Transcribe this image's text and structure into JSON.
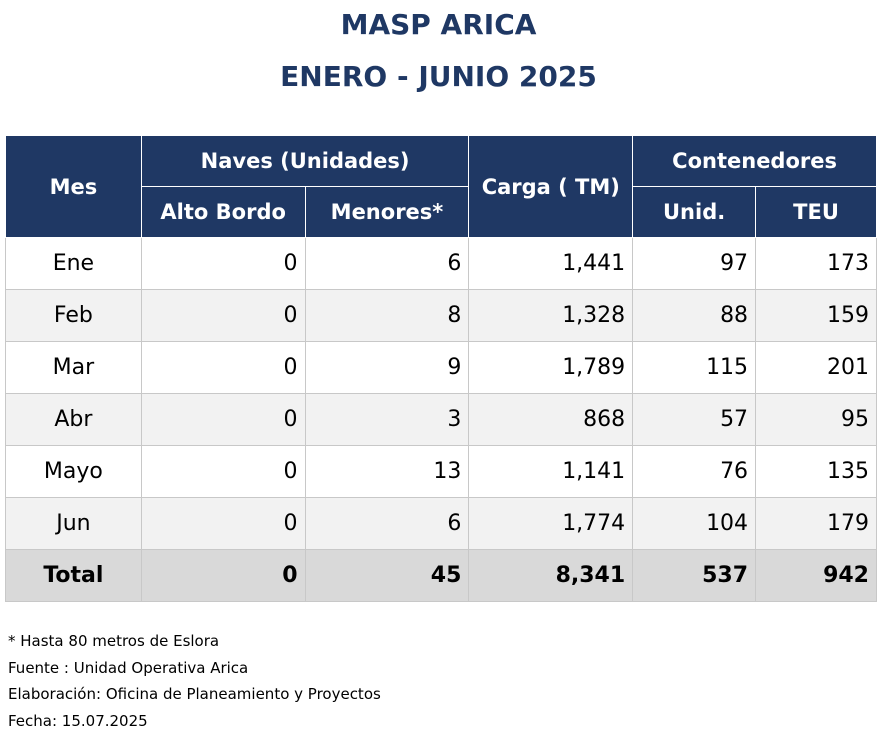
{
  "header": {
    "title_line1": "MASP ARICA",
    "title_line2": "ENERO - JUNIO 2025"
  },
  "table": {
    "headers": {
      "mes": "Mes",
      "naves": "Naves (Unidades)",
      "alto_bordo": "Alto Bordo",
      "menores": "Menores*",
      "carga": "Carga ( TM)",
      "contenedores": "Contenedores",
      "unid": "Unid.",
      "teu": "TEU"
    },
    "rows": [
      {
        "mes": "Ene",
        "alto_bordo": "0",
        "menores": "6",
        "carga": "1,441",
        "unid": "97",
        "teu": "173"
      },
      {
        "mes": "Feb",
        "alto_bordo": "0",
        "menores": "8",
        "carga": "1,328",
        "unid": "88",
        "teu": "159"
      },
      {
        "mes": "Mar",
        "alto_bordo": "0",
        "menores": "9",
        "carga": "1,789",
        "unid": "115",
        "teu": "201"
      },
      {
        "mes": "Abr",
        "alto_bordo": "0",
        "menores": "3",
        "carga": "868",
        "unid": "57",
        "teu": "95"
      },
      {
        "mes": "Mayo",
        "alto_bordo": "0",
        "menores": "13",
        "carga": "1,141",
        "unid": "76",
        "teu": "135"
      },
      {
        "mes": "Jun",
        "alto_bordo": "0",
        "menores": "6",
        "carga": "1,774",
        "unid": "104",
        "teu": "179"
      }
    ],
    "total": {
      "mes": "Total",
      "alto_bordo": "0",
      "menores": "45",
      "carga": "8,341",
      "unid": "537",
      "teu": "942"
    }
  },
  "footnotes": {
    "note": "* Hasta 80 metros de Eslora",
    "fuente": "Fuente : Unidad Operativa Arica",
    "elaboracion": "Elaboración: Oficina de Planeamiento y Proyectos",
    "fecha": "Fecha: 15.07.2025"
  },
  "colors": {
    "header_bg": "#1f3864",
    "title_text": "#1f3864",
    "alt_row_bg": "#f2f2f2",
    "total_row_bg": "#d9d9d9"
  }
}
